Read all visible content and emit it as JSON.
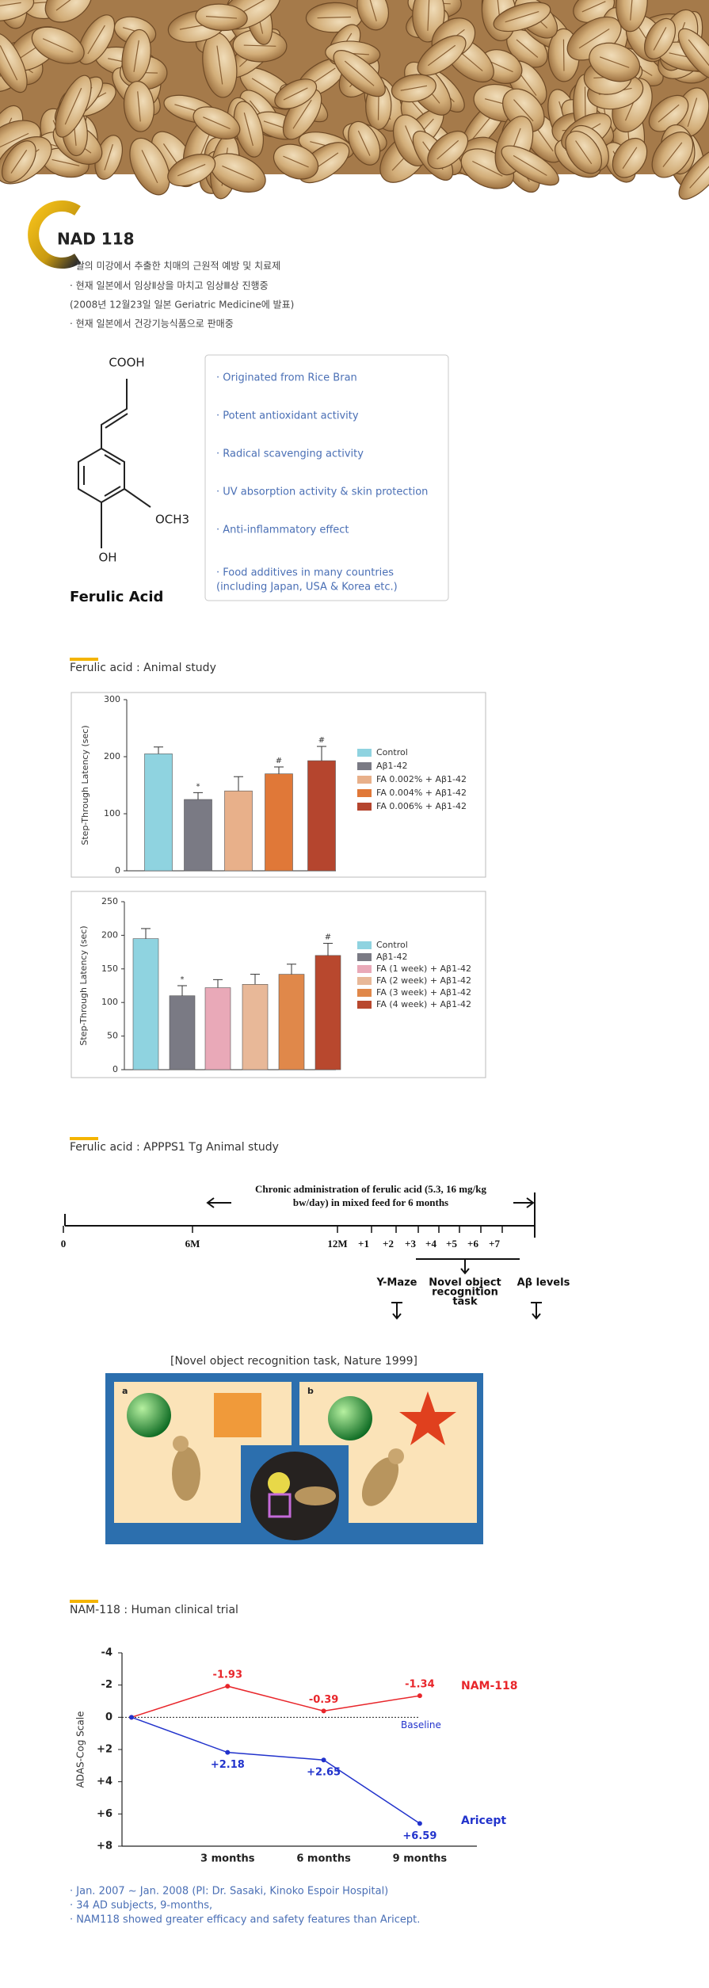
{
  "header": {
    "title": "NAD 118",
    "bullets": [
      "· 쌀의 미강에서 추출한 치매의 근원적 예방 및 치료제",
      "· 현재 일본에서 임상Ⅱ상을 마치고 임상Ⅲ상 진행중",
      "(2008년 12월23일 일본 Geriatric Medicine에 발표)",
      "· 현재 일본에서 건강기능식품으로 판매중"
    ]
  },
  "structure": {
    "groups": [
      "COOH",
      "OCH3",
      "OH"
    ],
    "name": "Ferulic Acid"
  },
  "features": {
    "items": [
      "· Originated from Rice Bran",
      "· Potent antioxidant activity",
      "· Radical scavenging activity",
      "· UV absorption activity & skin protection",
      "· Anti-inflammatory effect",
      "· Food additives in many countries"
    ],
    "note": "(including Japan, USA & Korea etc.)"
  },
  "sections": [
    "Ferulic acid : Animal study",
    "Ferulic acid : APPPS1 Tg Animal study",
    "NAM-118 : Human clinical trial"
  ],
  "chart_data": [
    {
      "type": "bar",
      "y_label": "Step-Through Latency (sec)",
      "categories": [
        "Control",
        "Aβ1-42",
        "FA 0.002% + Aβ1-42",
        "FA 0.004% + Aβ1-42",
        "FA 0.006% + Aβ1-42"
      ],
      "colors": [
        "#8fd3e0",
        "#7a7a84",
        "#e8b08a",
        "#e07838",
        "#b5452e"
      ],
      "values": [
        205,
        125,
        140,
        170,
        193
      ],
      "errors": [
        12,
        12,
        25,
        12,
        25
      ],
      "markers": [
        null,
        "*",
        null,
        "#",
        "#"
      ],
      "ylim": [
        0,
        300
      ],
      "yticks": [
        0,
        100,
        200,
        300
      ]
    },
    {
      "type": "bar",
      "y_label": "Step-Through Latency (sec)",
      "categories": [
        "Control",
        "Aβ1-42",
        "FA (1 week) + Aβ1-42",
        "FA (2 week) + Aβ1-42",
        "FA (3 week) + Aβ1-42",
        "FA (4 week) + Aβ1-42"
      ],
      "colors": [
        "#8fd3e0",
        "#7a7a84",
        "#e9a9b8",
        "#e8b898",
        "#e0884a",
        "#b8482e"
      ],
      "values": [
        195,
        110,
        122,
        127,
        142,
        170
      ],
      "errors": [
        15,
        15,
        12,
        15,
        15,
        18
      ],
      "markers": [
        null,
        "*",
        null,
        null,
        null,
        "#"
      ],
      "ylim": [
        0,
        250
      ],
      "yticks": [
        0,
        50,
        100,
        150,
        200,
        250
      ]
    },
    {
      "type": "line",
      "y_label": "ADAS-Cog Scale",
      "baseline_label": "Baseline",
      "categories": [
        null,
        "3 months",
        "6 months",
        "9 months"
      ],
      "series": [
        {
          "name": "NAM-118",
          "color": "#e8262b",
          "values": [
            0,
            -1.93,
            -0.39,
            -1.34
          ],
          "value_labels": [
            null,
            "-1.93",
            "-0.39",
            "-1.34"
          ]
        },
        {
          "name": "Aricept",
          "color": "#2233cc",
          "values": [
            0,
            2.18,
            2.65,
            6.59
          ],
          "value_labels": [
            null,
            "+2.18",
            "+2.65",
            "+6.59"
          ]
        }
      ],
      "ylim": [
        -4,
        8
      ],
      "y_inverted": true,
      "yticks": [
        -4,
        -2,
        0,
        {
          "value": 2,
          "label": "+2"
        },
        {
          "value": 4,
          "label": "+4"
        },
        {
          "value": 6,
          "label": "+6"
        },
        {
          "value": 8,
          "label": "+8"
        }
      ]
    }
  ],
  "timeline": {
    "labels": [
      "0",
      "6M",
      "12M",
      "+1",
      "+2",
      "+3",
      "+4",
      "+5",
      "+6",
      "+7"
    ],
    "treatment": [
      "Chronic  administration  of ferulic acid (5.3, 16 mg/kg",
      "bw/day)  in mixed feed for 6 months"
    ],
    "events": [
      [
        "Y-Maze"
      ],
      [
        "Novel object",
        "recognition",
        "task"
      ],
      [
        "Aβ levels"
      ]
    ]
  },
  "figure": {
    "caption": "[Novel object recognition task, Nature 1999]",
    "panel_labels": [
      "a",
      "b"
    ]
  },
  "footnotes": [
    "· Jan. 2007 ~ Jan. 2008 (PI: Dr. Sasaki, Kinoko Espoir Hospital)",
    "· 34 AD subjects, 9-months,",
    "· NAM118 showed greater efficacy and safety features than Aricept."
  ]
}
